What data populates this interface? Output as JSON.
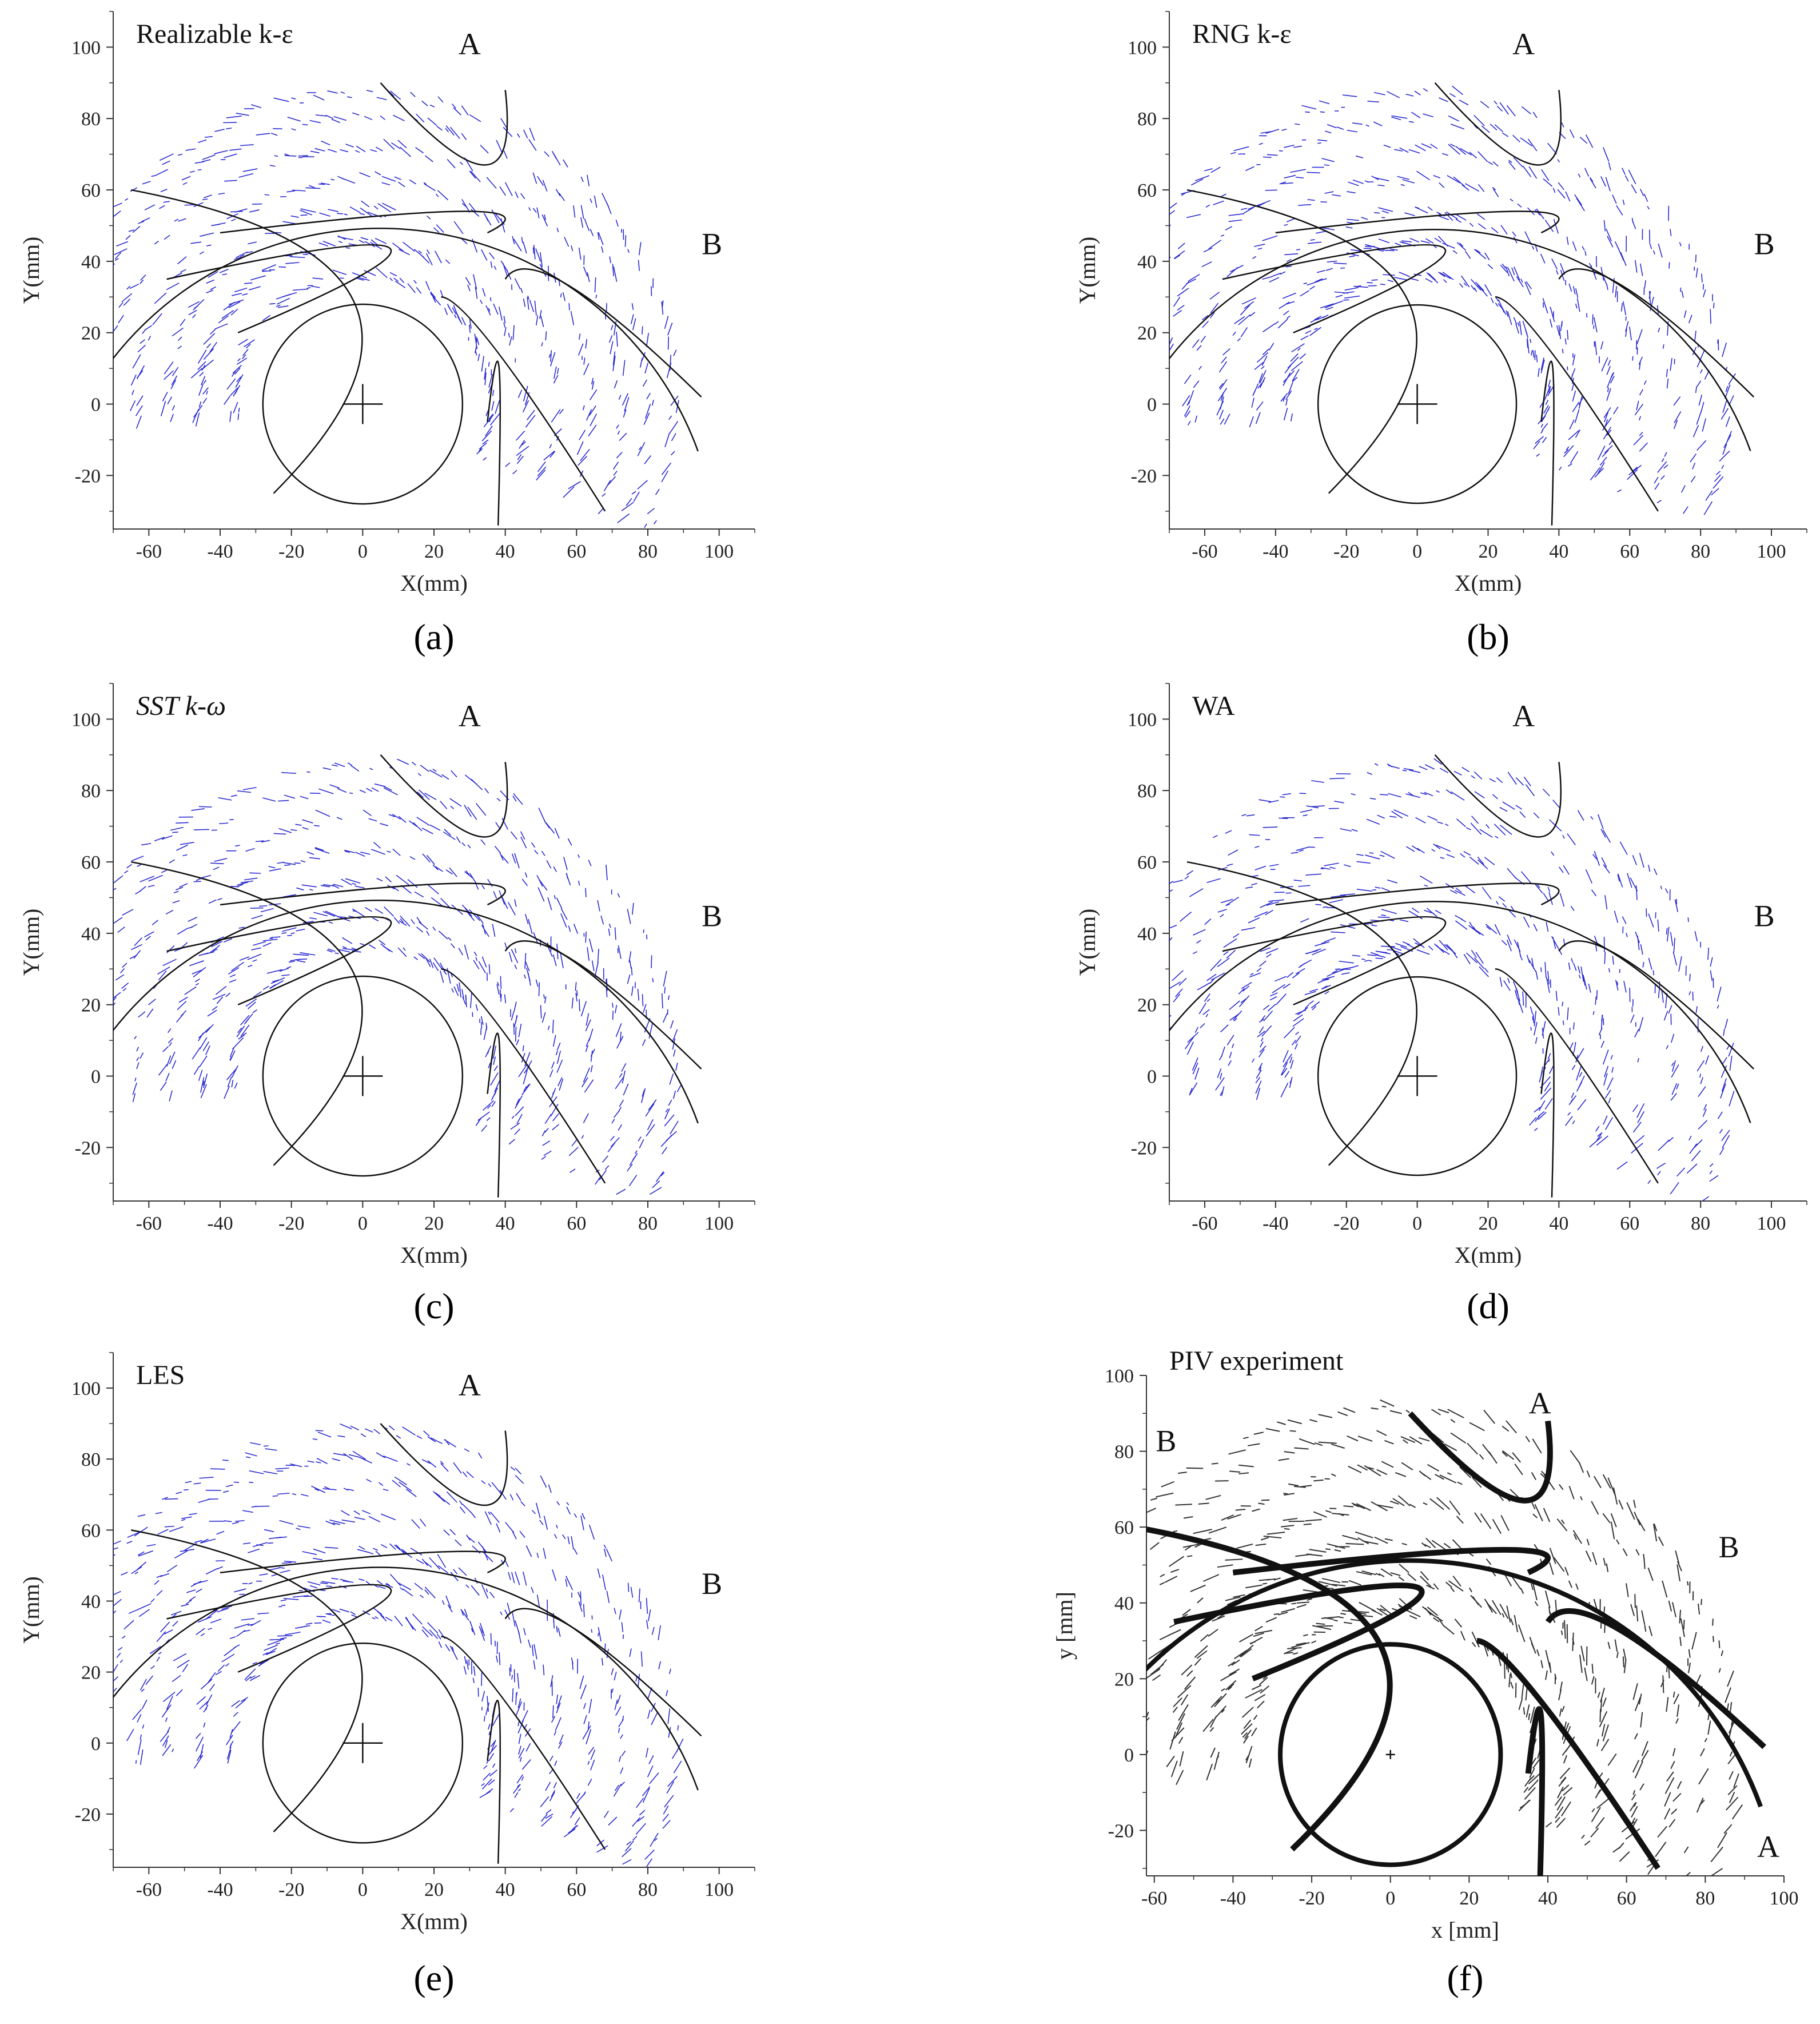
{
  "figure": {
    "captions": [
      "(a)",
      "(b)",
      "(c)",
      "(d)",
      "(e)",
      "(f)"
    ]
  },
  "colors": {
    "cfd_vectors": "#2a2ad0",
    "piv_vectors": "#333333",
    "geometry": "#111111"
  },
  "chart_data": [
    {
      "type": "scatter",
      "panel": "a",
      "title": "Realizable k-ε",
      "xlabel": "X(mm)",
      "ylabel": "Y(mm)",
      "xlim": [
        -70,
        110
      ],
      "ylim": [
        -35,
        110
      ],
      "xticks": [
        -60,
        -40,
        -20,
        0,
        20,
        40,
        60,
        80,
        100
      ],
      "yticks": [
        -20,
        0,
        20,
        40,
        60,
        80,
        100
      ],
      "annotations": [
        "A",
        "B"
      ]
    },
    {
      "type": "scatter",
      "panel": "b",
      "title": "RNG k-ε",
      "xlabel": "X(mm)",
      "ylabel": "Y(mm)",
      "xlim": [
        -70,
        110
      ],
      "ylim": [
        -35,
        110
      ],
      "xticks": [
        -60,
        -40,
        -20,
        0,
        20,
        40,
        60,
        80,
        100
      ],
      "yticks": [
        -20,
        0,
        20,
        40,
        60,
        80,
        100
      ],
      "annotations": [
        "A",
        "B"
      ]
    },
    {
      "type": "scatter",
      "panel": "c",
      "title": "SST k-ω",
      "xlabel": "X(mm)",
      "ylabel": "Y(mm)",
      "xlim": [
        -70,
        110
      ],
      "ylim": [
        -35,
        110
      ],
      "xticks": [
        -60,
        -40,
        -20,
        0,
        20,
        40,
        60,
        80,
        100
      ],
      "yticks": [
        -20,
        0,
        20,
        40,
        60,
        80,
        100
      ],
      "annotations": [
        "A",
        "B"
      ]
    },
    {
      "type": "scatter",
      "panel": "d",
      "title": "WA",
      "xlabel": "X(mm)",
      "ylabel": "Y(mm)",
      "xlim": [
        -70,
        110
      ],
      "ylim": [
        -35,
        110
      ],
      "xticks": [
        -60,
        -40,
        -20,
        0,
        20,
        40,
        60,
        80,
        100
      ],
      "yticks": [
        -20,
        0,
        20,
        40,
        60,
        80,
        100
      ],
      "annotations": [
        "A",
        "B"
      ]
    },
    {
      "type": "scatter",
      "panel": "e",
      "title": "LES",
      "xlabel": "X(mm)",
      "ylabel": "Y(mm)",
      "xlim": [
        -70,
        110
      ],
      "ylim": [
        -35,
        110
      ],
      "xticks": [
        -60,
        -40,
        -20,
        0,
        20,
        40,
        60,
        80,
        100
      ],
      "yticks": [
        -20,
        0,
        20,
        40,
        60,
        80,
        100
      ],
      "annotations": [
        "A",
        "B"
      ]
    },
    {
      "type": "scatter",
      "panel": "f",
      "title": "PIV experiment",
      "xlabel": "x [mm]",
      "ylabel": "y [mm]",
      "xlim": [
        -62,
        100
      ],
      "ylim": [
        -32,
        100
      ],
      "xticks": [
        -60,
        -40,
        -20,
        0,
        20,
        40,
        60,
        80,
        100
      ],
      "yticks": [
        -20,
        0,
        20,
        40,
        60,
        80,
        100
      ],
      "annotations": [
        "A",
        "B",
        "B",
        "A"
      ]
    }
  ]
}
